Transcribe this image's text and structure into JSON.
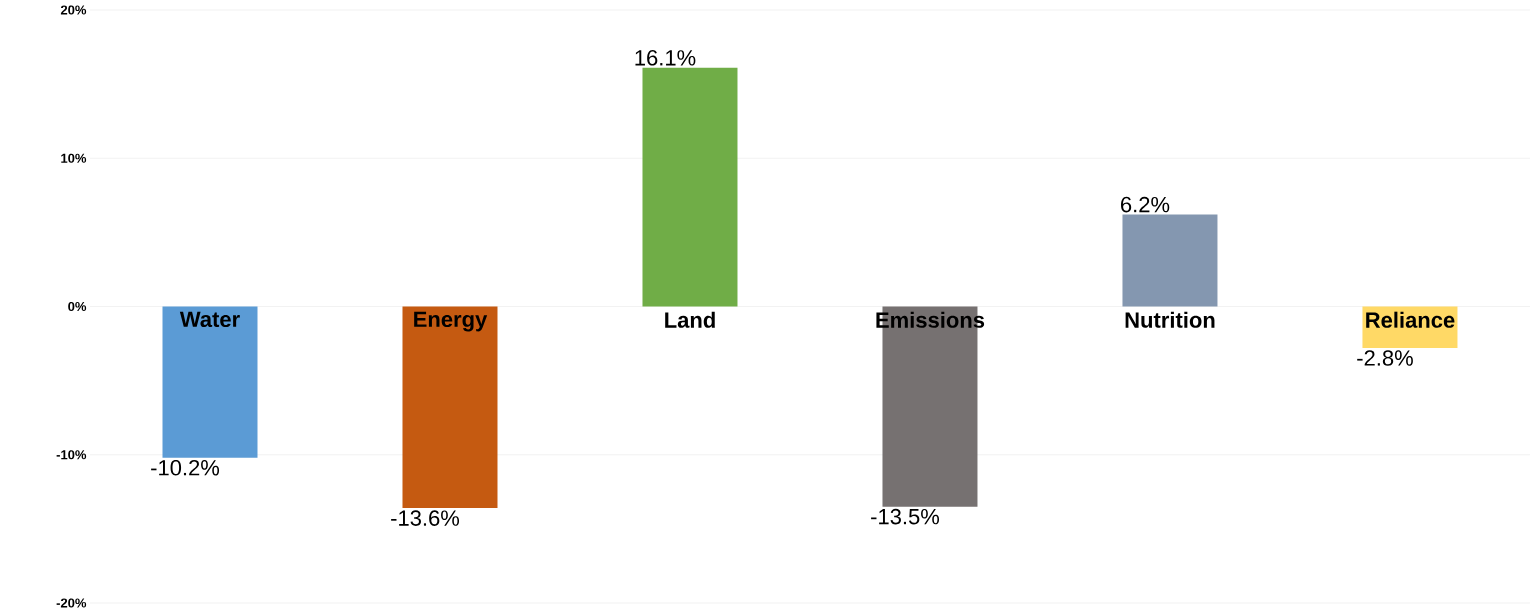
{
  "chart_data": {
    "type": "bar",
    "categories": [
      "Water",
      "Energy",
      "Land",
      "Emissions",
      "Nutrition",
      "Reliance"
    ],
    "values": [
      -10.2,
      -13.6,
      16.1,
      -13.5,
      6.2,
      -2.8
    ],
    "value_labels": [
      "-10.2%",
      "-13.6%",
      "16.1%",
      "-13.5%",
      "6.2%",
      "-2.8%"
    ],
    "colors": [
      "#5b9bd5",
      "#c55a11",
      "#70ad47",
      "#767171",
      "#8497b0",
      "#ffd966"
    ],
    "ylim": [
      -20,
      20
    ],
    "yticks": [
      {
        "value": -20,
        "label": "-20%"
      },
      {
        "value": -10,
        "label": "-10%"
      },
      {
        "value": 0,
        "label": "0%"
      },
      {
        "value": 10,
        "label": "10%"
      },
      {
        "value": 20,
        "label": "20%"
      }
    ],
    "grid": "y"
  }
}
